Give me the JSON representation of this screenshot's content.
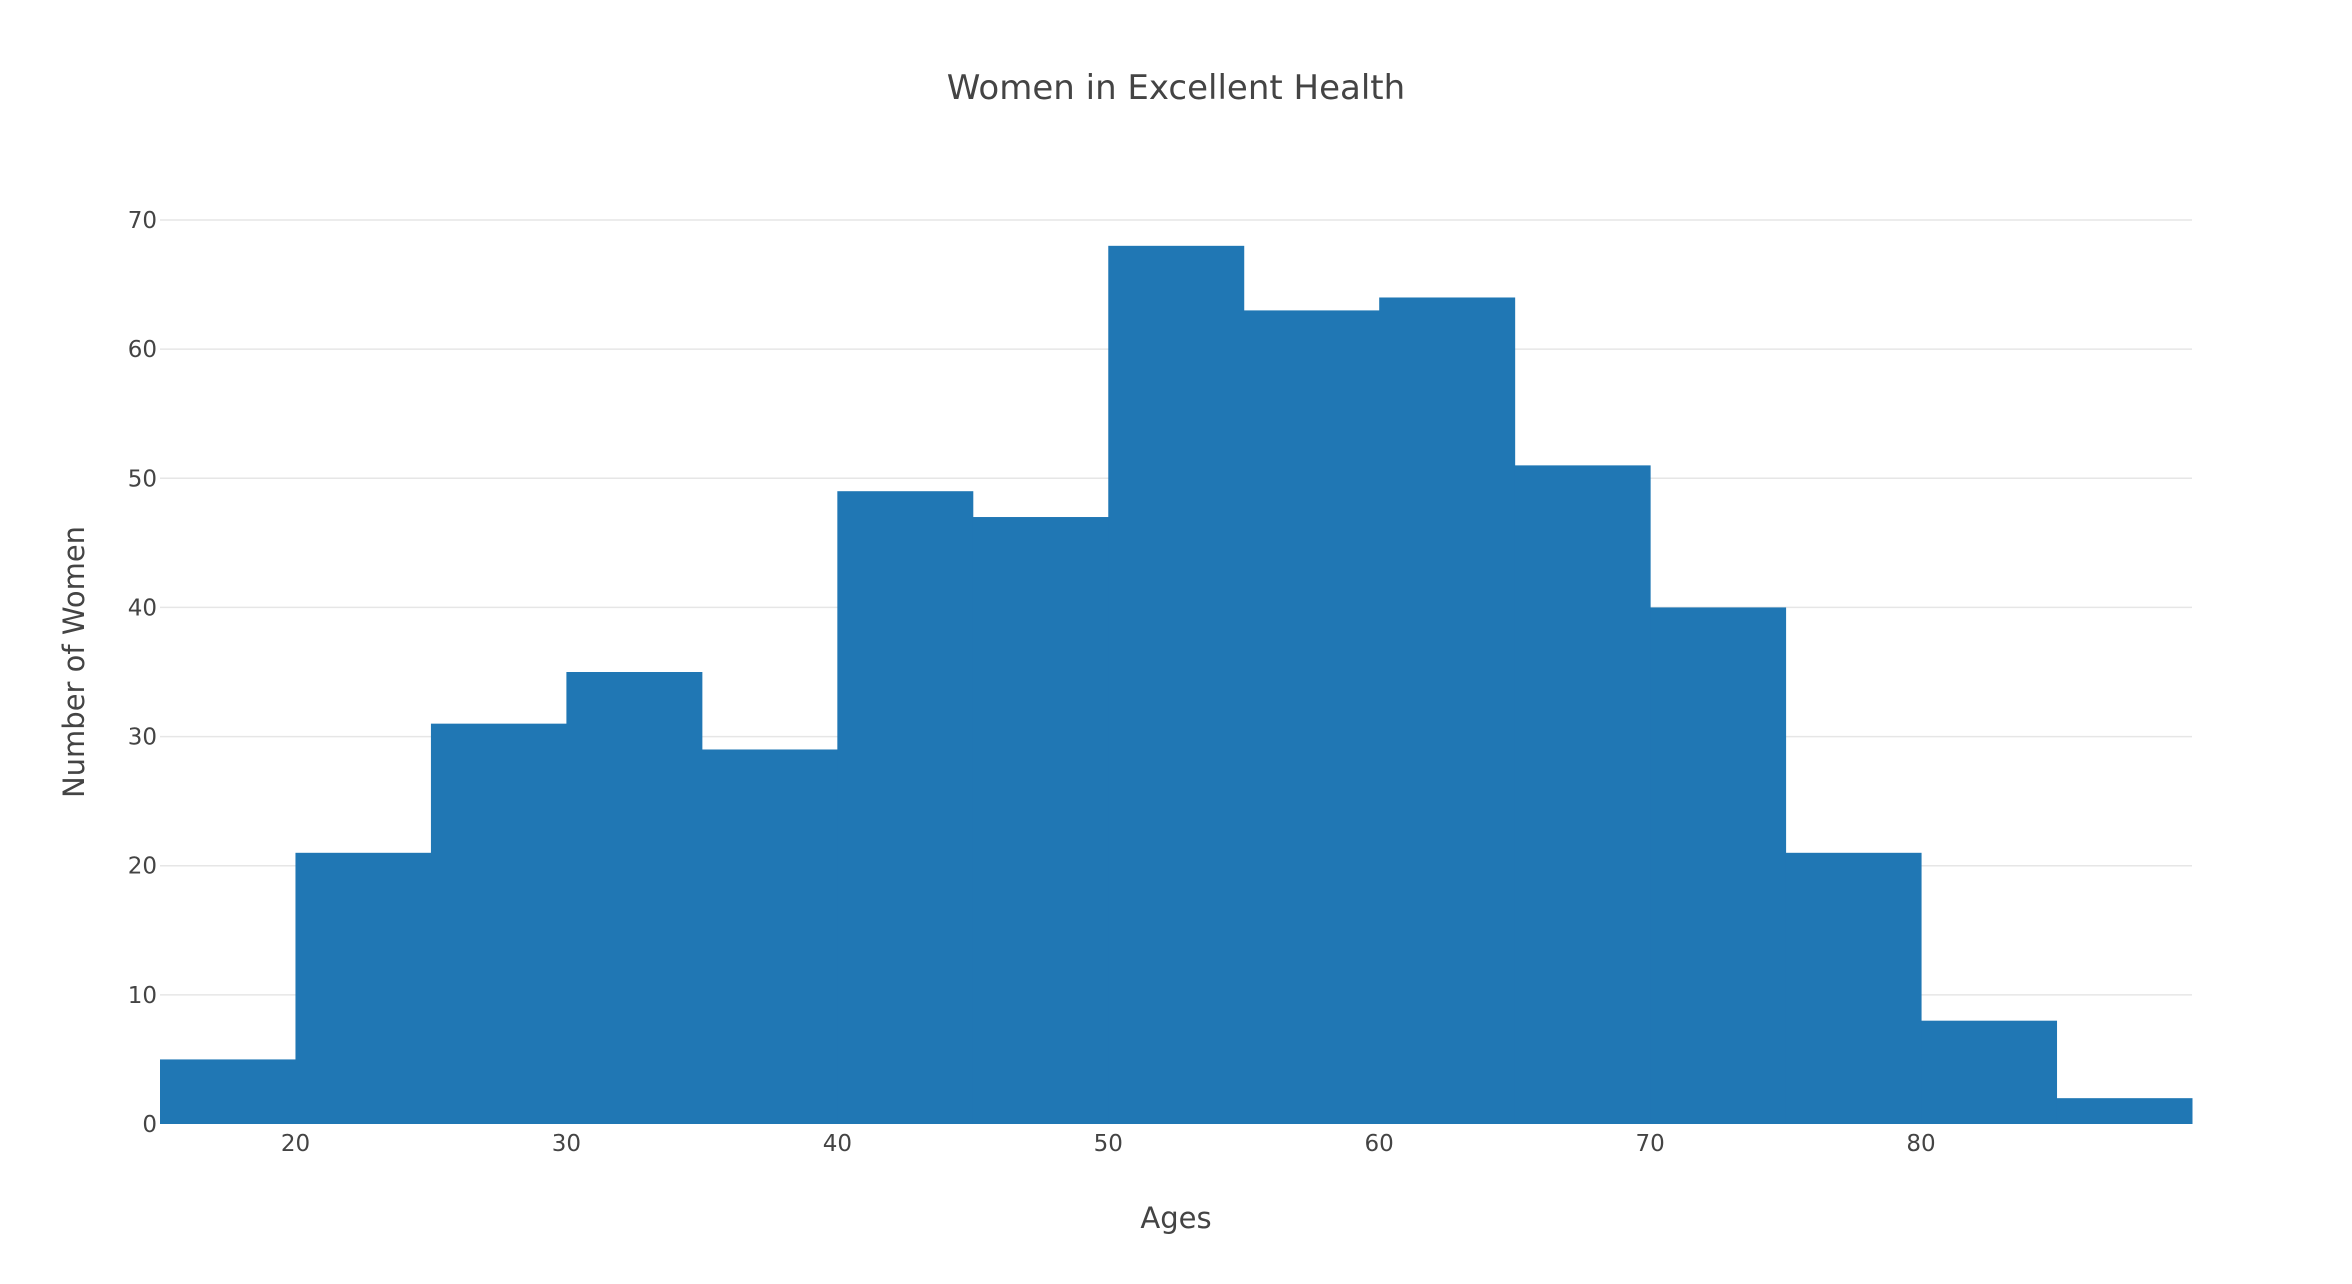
{
  "chart_data": {
    "type": "bar",
    "title": "Women in Excellent Health",
    "xlabel": "Ages",
    "ylabel": "Number of Women",
    "bin_edges": [
      15,
      20,
      25,
      30,
      35,
      40,
      45,
      50,
      55,
      60,
      65,
      70,
      75,
      80,
      85,
      90
    ],
    "values": [
      5,
      21,
      31,
      35,
      29,
      49,
      47,
      68,
      63,
      64,
      51,
      40,
      21,
      8,
      2
    ],
    "xlim": [
      15,
      90
    ],
    "ylim": [
      0,
      70
    ],
    "x_ticks": [
      20,
      30,
      40,
      50,
      60,
      70,
      80
    ],
    "y_ticks": [
      0,
      10,
      20,
      30,
      40,
      50,
      60,
      70
    ],
    "grid": true,
    "bar_color": "#2077b4"
  }
}
